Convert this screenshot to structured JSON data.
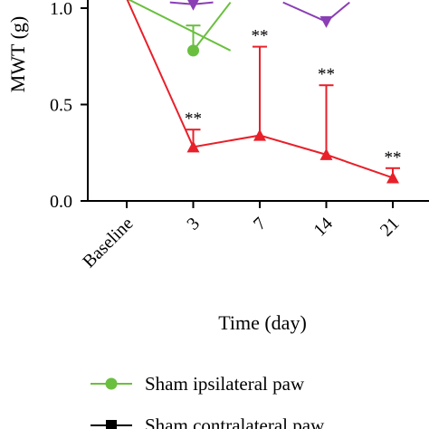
{
  "chart_data": {
    "type": "line",
    "ylabel": "MWT (g)",
    "xlabel": "Time (day)",
    "ylim": [
      0,
      1.0
    ],
    "y_ticks": [
      "0.0",
      "0.5",
      "1.0"
    ],
    "y_tick_values": [
      0,
      0.5,
      1.0
    ],
    "categories": [
      "Baseline",
      "3",
      "7",
      "14",
      "21"
    ],
    "grid": false,
    "series": [
      {
        "name": "Sham ipsilateral paw",
        "color": "#6abf3f",
        "marker": "circle",
        "values": [
          1.05,
          0.78,
          null,
          null,
          null
        ],
        "error_up": [
          null,
          0.13,
          null,
          null,
          null
        ],
        "visible_x": [
          0,
          1.56
        ],
        "visible_values": [
          1.05,
          0.78
        ],
        "visible_segment": [
          [
            1,
            0.78
          ],
          [
            1.56,
            1.03
          ]
        ]
      },
      {
        "name": "Sham contralateral paw",
        "color": "#000000",
        "marker": "square",
        "values": [
          null,
          null,
          null,
          null,
          null
        ]
      },
      {
        "name": "",
        "color": "#8a3fb5",
        "marker": "triangle-down",
        "values": [
          null,
          1.02,
          null,
          0.93,
          null
        ],
        "segments": [
          [
            [
              0.65,
              1.03
            ],
            [
              1,
              1.02
            ],
            [
              1.3,
              1.03
            ]
          ],
          [
            [
              2.35,
              1.03
            ],
            [
              3,
              0.93
            ],
            [
              3.35,
              1.03
            ]
          ]
        ]
      },
      {
        "name": "",
        "color": "#e8202a",
        "marker": "triangle-up",
        "values": [
          1.05,
          0.28,
          0.34,
          0.24,
          0.12
        ],
        "error_up": [
          null,
          0.09,
          0.46,
          0.36,
          0.05
        ],
        "significance": [
          "",
          "**",
          "**",
          "**",
          "**"
        ]
      }
    ],
    "legend": {
      "placement": "bottom",
      "entries": [
        "Sham ipsilateral paw",
        "Sham contralateral paw"
      ]
    }
  }
}
